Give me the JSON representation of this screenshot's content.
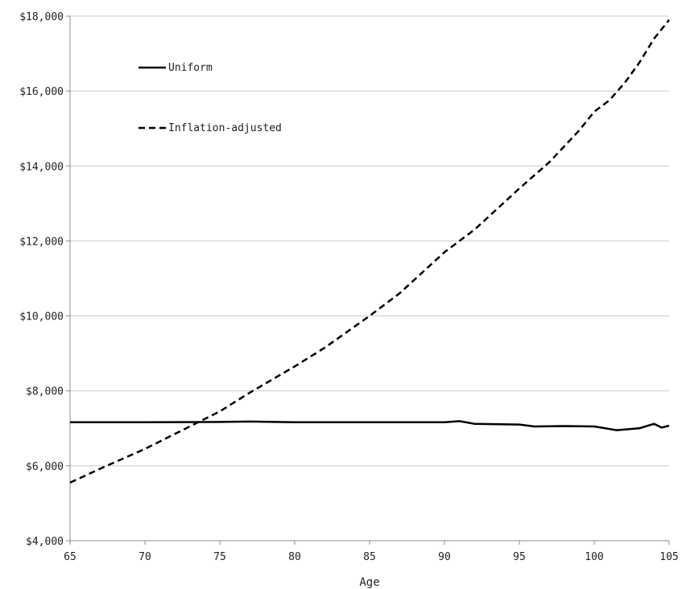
{
  "chart_data": {
    "type": "line",
    "title": "",
    "xlabel": "Age",
    "ylabel": "",
    "xlim": [
      65,
      105
    ],
    "ylim": [
      4000,
      18000
    ],
    "x_ticks": [
      65,
      70,
      75,
      80,
      85,
      90,
      95,
      100,
      105
    ],
    "x_tick_labels": [
      "65",
      "70",
      "75",
      "80",
      "85",
      "90",
      "95",
      "100",
      "105"
    ],
    "y_ticks": [
      4000,
      6000,
      8000,
      10000,
      12000,
      14000,
      16000,
      18000
    ],
    "y_tick_labels": [
      "$4,000",
      "$6,000",
      "$8,000",
      "$10,000",
      "$12,000",
      "$14,000",
      "$16,000",
      "$18,000"
    ],
    "grid": "horizontal",
    "legend": "top-left",
    "series": [
      {
        "name": "Uniform",
        "style": "solid",
        "color": "#000000",
        "x": [
          65,
          70,
          75,
          77,
          80,
          85,
          90,
          91,
          92,
          95,
          96,
          98,
          100,
          101.5,
          103,
          104,
          104.5,
          105
        ],
        "values": [
          7160,
          7160,
          7170,
          7180,
          7160,
          7160,
          7160,
          7190,
          7120,
          7100,
          7050,
          7060,
          7050,
          6950,
          7000,
          7120,
          7020,
          7070
        ]
      },
      {
        "name": "Inflation-adjusted",
        "style": "dashed",
        "color": "#000000",
        "x": [
          65,
          67,
          70,
          72,
          74,
          75,
          77,
          80,
          82,
          85,
          87,
          90,
          92,
          95,
          97,
          99,
          100,
          101,
          102,
          103,
          104,
          105
        ],
        "values": [
          5550,
          5920,
          6450,
          6850,
          7250,
          7450,
          7950,
          8650,
          9150,
          10000,
          10600,
          11700,
          12300,
          13400,
          14100,
          14950,
          15450,
          15750,
          16200,
          16750,
          17400,
          17900
        ]
      }
    ]
  }
}
